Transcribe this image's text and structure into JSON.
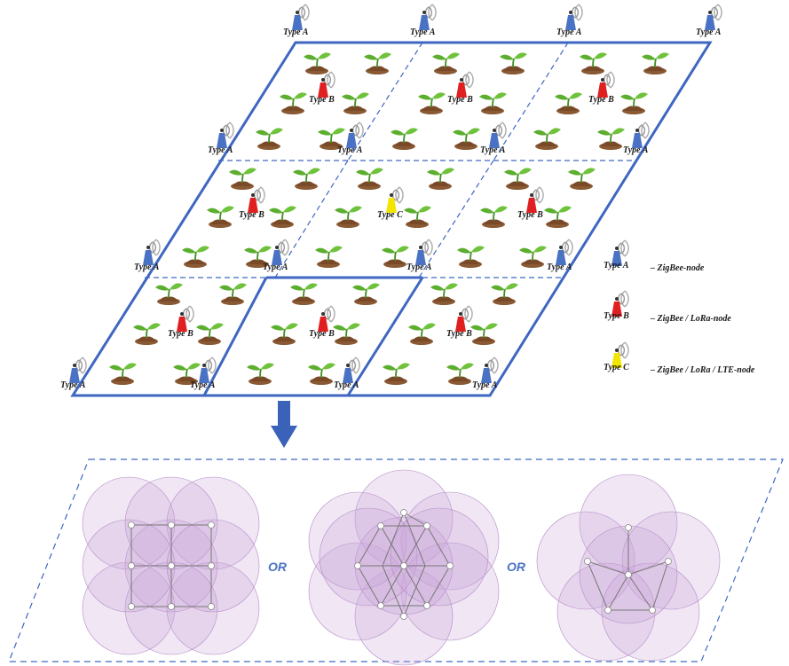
{
  "nodes": {
    "type_a_label": "Type A",
    "type_b_label": "Type B",
    "type_c_label": "Type C"
  },
  "legend": {
    "items": [
      {
        "label": "Type A",
        "desc": "– ZigBee-node",
        "color": "#4a72c4"
      },
      {
        "label": "Type B",
        "desc": "– ZigBee / LoRa-node",
        "color": "#e02020"
      },
      {
        "label": "Type C",
        "desc": "– ZigBee / LoRa / LTE-node",
        "color": "#f2e600"
      }
    ]
  },
  "or_labels": [
    "OR",
    "OR"
  ],
  "colors": {
    "grid_line": "#3f67c2",
    "arrow": "#3a62b8",
    "coverage": "#c9a6d8",
    "leaf": "#5cae2e",
    "soil": "#8a5a34",
    "dash_frame": "#3f67c2"
  }
}
